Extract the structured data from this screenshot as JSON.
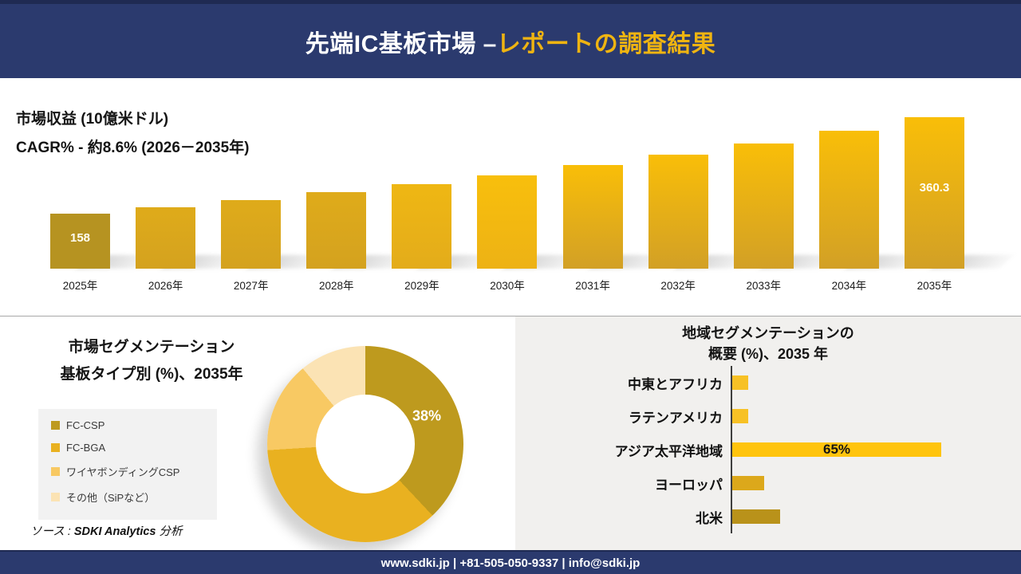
{
  "header": {
    "title_white": "先端IC基板市場 –",
    "title_yellow": "レポートの調査結果"
  },
  "revenue_section": {
    "unit_label": "市場収益 (10億米ドル)",
    "cagr_label": "CAGR% - 約8.6% (2026－2035年)"
  },
  "segmentation_section": {
    "title_line1": "市場セグメンテーション",
    "title_line2": "基板タイプ別 (%)、2035年",
    "source_prefix": "ソース : ",
    "source_brand": "SDKI Analytics",
    "source_suffix": " 分析"
  },
  "regional_section": {
    "title_line1": "地域セグメンテーションの",
    "title_line2": "概要 (%)、2035 年"
  },
  "footer": {
    "text": "www.sdki.jp | +81-505-050-9337 | info@sdki.jp"
  },
  "colors": {
    "navy": "#2B3A6E",
    "navy_dark": "#1F2A52",
    "accent_yellow": "#EFB411",
    "panel_gray": "#F1F0EE",
    "legend_gray": "#F2F2F2"
  },
  "chart_data": [
    {
      "type": "bar",
      "title": "市場収益 (10億米ドル)",
      "subtitle": "CAGR% - 約8.6% (2026－2035年)",
      "categories": [
        "2025年",
        "2026年",
        "2027年",
        "2028年",
        "2029年",
        "2030年",
        "2031年",
        "2032年",
        "2033年",
        "2034年",
        "2035年"
      ],
      "values": [
        158,
        171.6,
        186.3,
        202.4,
        219.8,
        238.6,
        259.2,
        281.4,
        305.7,
        331.9,
        360.3
      ],
      "shown_value_labels": [
        "158",
        "",
        "",
        "",
        "",
        "",
        "",
        "",
        "",
        "",
        "360.3"
      ],
      "bar_colors": [
        [
          "#B69321",
          "#B69321"
        ],
        [
          "#DFAB1A",
          "#D4A21F"
        ],
        [
          "#DFAB1A",
          "#D4A21F"
        ],
        [
          "#DFAB1A",
          "#D4A21F"
        ],
        [
          "#EFB713",
          "#E3AC1B"
        ],
        [
          "#F8BF0C",
          "#EDB215"
        ],
        [
          "#F9BE08",
          "#D2A026"
        ],
        [
          "#F9BE08",
          "#D2A026"
        ],
        [
          "#F9BE08",
          "#D2A026"
        ],
        [
          "#F9BE08",
          "#D2A026"
        ],
        [
          "#F9BE08",
          "#D2A026"
        ]
      ],
      "xlabel": "",
      "ylabel": "市場収益 (10億米ドル)",
      "grid": false,
      "legend": "none"
    },
    {
      "type": "pie",
      "subtype": "donut",
      "title": "市場セグメンテーション 基板タイプ別 (%)、2035年",
      "labels": [
        "FC-CSP",
        "FC-BGA",
        "ワイヤボンディングCSP",
        "その他（SiPなど）"
      ],
      "values": [
        38,
        36,
        15,
        11
      ],
      "colors": [
        "#BE9A1E",
        "#E9B120",
        "#F8C963",
        "#FBE3B4"
      ],
      "shown_slice_label": "38%",
      "start_angle_deg": 0,
      "direction": "clockwise",
      "legend_position": "left"
    },
    {
      "type": "bar",
      "orientation": "horizontal",
      "title": "地域セグメンテーションの 概要 (%)、2035 年",
      "categories": [
        "中東とアフリカ",
        "ラテンアメリカ",
        "アジア太平洋地域",
        "ヨーロッパ",
        "北米"
      ],
      "values": [
        5,
        5,
        65,
        10,
        15
      ],
      "shown_value_labels": [
        "",
        "",
        "65%",
        "",
        ""
      ],
      "colors": [
        "#F7C125",
        "#F7C125",
        "#FFC40D",
        "#DCA81B",
        "#B9921A"
      ],
      "xlim": [
        0,
        87
      ],
      "grid": false
    }
  ]
}
